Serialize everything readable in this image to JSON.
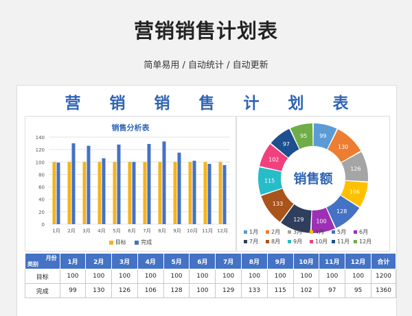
{
  "header": {
    "title": "营销销售计划表",
    "subtitle": "简单易用 / 自动统计 / 自动更新"
  },
  "sheet": {
    "title": "营销销售计划表"
  },
  "bar_chart": {
    "title": "销售分析表",
    "legend": [
      "目标",
      "完成"
    ]
  },
  "donut": {
    "center_label": "销售额"
  },
  "table": {
    "corner_top": "月份",
    "corner_bottom": "类别",
    "months": [
      "1月",
      "2月",
      "3月",
      "4月",
      "5月",
      "6月",
      "7月",
      "8月",
      "9月",
      "10月",
      "11月",
      "12月"
    ],
    "total_label": "合计",
    "rows": [
      {
        "label": "目标",
        "values": [
          "100",
          "100",
          "100",
          "100",
          "100",
          "100",
          "100",
          "100",
          "100",
          "100",
          "100",
          "100"
        ],
        "total": "1200"
      },
      {
        "label": "完成",
        "values": [
          "99",
          "130",
          "126",
          "106",
          "128",
          "100",
          "129",
          "133",
          "115",
          "102",
          "97",
          "95"
        ],
        "total": "1360"
      }
    ]
  },
  "colors": {
    "target": "#f5b31c",
    "actual": "#4472c4",
    "accent": "#2e64b4"
  },
  "chart_data": [
    {
      "type": "bar",
      "title": "销售分析表",
      "categories": [
        "1月",
        "2月",
        "3月",
        "4月",
        "5月",
        "6月",
        "7月",
        "8月",
        "9月",
        "10月",
        "11月",
        "12月"
      ],
      "series": [
        {
          "name": "目标",
          "values": [
            100,
            100,
            100,
            100,
            100,
            100,
            100,
            100,
            100,
            100,
            100,
            100
          ],
          "color": "#f5b31c"
        },
        {
          "name": "完成",
          "values": [
            99,
            130,
            126,
            106,
            128,
            100,
            129,
            133,
            115,
            102,
            97,
            95
          ],
          "color": "#4472c4"
        }
      ],
      "ylim": [
        0,
        140
      ],
      "yticks": [
        0,
        20,
        40,
        60,
        80,
        100,
        120,
        140
      ],
      "grid": true,
      "legend": "bottom"
    },
    {
      "type": "pie",
      "labels": [
        "1月",
        "2月",
        "3月",
        "4月",
        "5月",
        "6月",
        "7月",
        "8月",
        "9月",
        "10月",
        "11月",
        "12月"
      ],
      "values": [
        99,
        130,
        126,
        106,
        128,
        100,
        129,
        133,
        115,
        102,
        97,
        95
      ],
      "colors": [
        "#5b9bd5",
        "#ed7d31",
        "#a5a5a5",
        "#ffc000",
        "#4472c4",
        "#9e30b5",
        "#2f3e5c",
        "#a9541a",
        "#26bcc8",
        "#f0407e",
        "#1e4f8e",
        "#70ad47"
      ],
      "center_label": "销售额",
      "legend": "bottom"
    }
  ]
}
